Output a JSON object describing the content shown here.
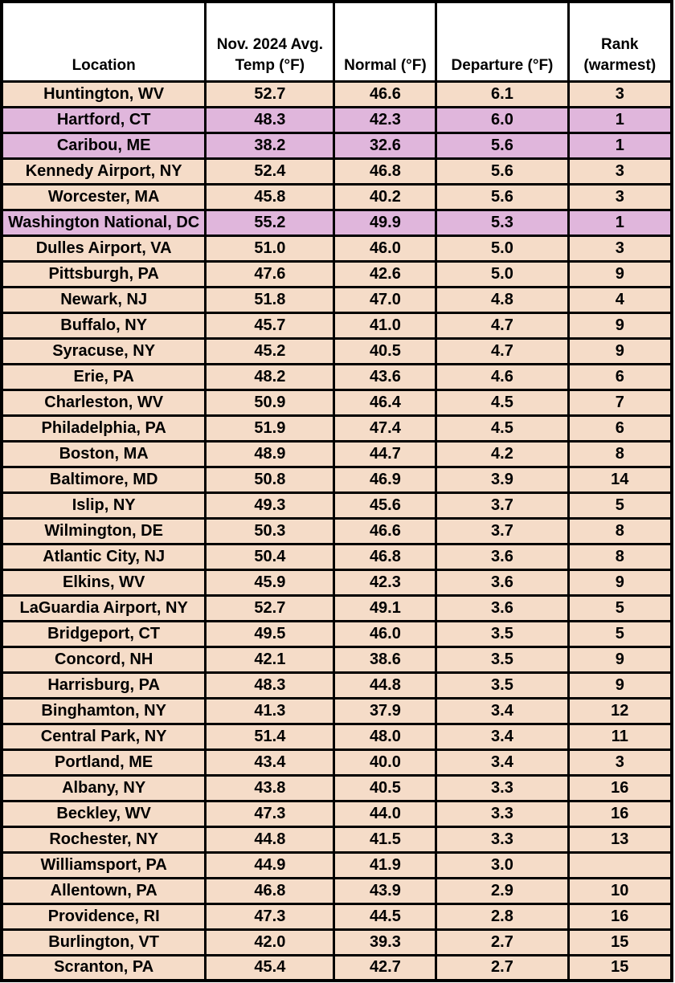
{
  "colors": {
    "row_default": "#f5dcc8",
    "row_highlight": "#e0b6dc",
    "header_bg": "#ffffff",
    "border": "#000000",
    "text": "#000000"
  },
  "chart_data": {
    "type": "table",
    "columns": [
      "Location",
      "Nov. 2024 Avg.\nTemp (°F)",
      "Normal (°F)",
      "Departure (°F)",
      "Rank\n(warmest)"
    ],
    "highlighted_row_indices": [
      1,
      2,
      5
    ],
    "rows": [
      [
        "Huntington, WV",
        "52.7",
        "46.6",
        "6.1",
        "3"
      ],
      [
        "Hartford, CT",
        "48.3",
        "42.3",
        "6.0",
        "1"
      ],
      [
        "Caribou, ME",
        "38.2",
        "32.6",
        "5.6",
        "1"
      ],
      [
        "Kennedy Airport, NY",
        "52.4",
        "46.8",
        "5.6",
        "3"
      ],
      [
        "Worcester, MA",
        "45.8",
        "40.2",
        "5.6",
        "3"
      ],
      [
        "Washington National, DC",
        "55.2",
        "49.9",
        "5.3",
        "1"
      ],
      [
        "Dulles Airport, VA",
        "51.0",
        "46.0",
        "5.0",
        "3"
      ],
      [
        "Pittsburgh, PA",
        "47.6",
        "42.6",
        "5.0",
        "9"
      ],
      [
        "Newark, NJ",
        "51.8",
        "47.0",
        "4.8",
        "4"
      ],
      [
        "Buffalo, NY",
        "45.7",
        "41.0",
        "4.7",
        "9"
      ],
      [
        "Syracuse, NY",
        "45.2",
        "40.5",
        "4.7",
        "9"
      ],
      [
        "Erie, PA",
        "48.2",
        "43.6",
        "4.6",
        "6"
      ],
      [
        "Charleston, WV",
        "50.9",
        "46.4",
        "4.5",
        "7"
      ],
      [
        "Philadelphia, PA",
        "51.9",
        "47.4",
        "4.5",
        "6"
      ],
      [
        "Boston, MA",
        "48.9",
        "44.7",
        "4.2",
        "8"
      ],
      [
        "Baltimore, MD",
        "50.8",
        "46.9",
        "3.9",
        "14"
      ],
      [
        "Islip, NY",
        "49.3",
        "45.6",
        "3.7",
        "5"
      ],
      [
        "Wilmington, DE",
        "50.3",
        "46.6",
        "3.7",
        "8"
      ],
      [
        "Atlantic City, NJ",
        "50.4",
        "46.8",
        "3.6",
        "8"
      ],
      [
        "Elkins, WV",
        "45.9",
        "42.3",
        "3.6",
        "9"
      ],
      [
        "LaGuardia Airport, NY",
        "52.7",
        "49.1",
        "3.6",
        "5"
      ],
      [
        "Bridgeport, CT",
        "49.5",
        "46.0",
        "3.5",
        "5"
      ],
      [
        "Concord, NH",
        "42.1",
        "38.6",
        "3.5",
        "9"
      ],
      [
        "Harrisburg, PA",
        "48.3",
        "44.8",
        "3.5",
        "9"
      ],
      [
        "Binghamton, NY",
        "41.3",
        "37.9",
        "3.4",
        "12"
      ],
      [
        "Central Park, NY",
        "51.4",
        "48.0",
        "3.4",
        "11"
      ],
      [
        "Portland, ME",
        "43.4",
        "40.0",
        "3.4",
        "3"
      ],
      [
        "Albany, NY",
        "43.8",
        "40.5",
        "3.3",
        "16"
      ],
      [
        "Beckley, WV",
        "47.3",
        "44.0",
        "3.3",
        "16"
      ],
      [
        "Rochester, NY",
        "44.8",
        "41.5",
        "3.3",
        "13"
      ],
      [
        "Williamsport, PA",
        "44.9",
        "41.9",
        "3.0",
        ""
      ],
      [
        "Allentown, PA",
        "46.8",
        "43.9",
        "2.9",
        "10"
      ],
      [
        "Providence, RI",
        "47.3",
        "44.5",
        "2.8",
        "16"
      ],
      [
        "Burlington, VT",
        "42.0",
        "39.3",
        "2.7",
        "15"
      ],
      [
        "Scranton, PA",
        "45.4",
        "42.7",
        "2.7",
        "15"
      ]
    ]
  }
}
